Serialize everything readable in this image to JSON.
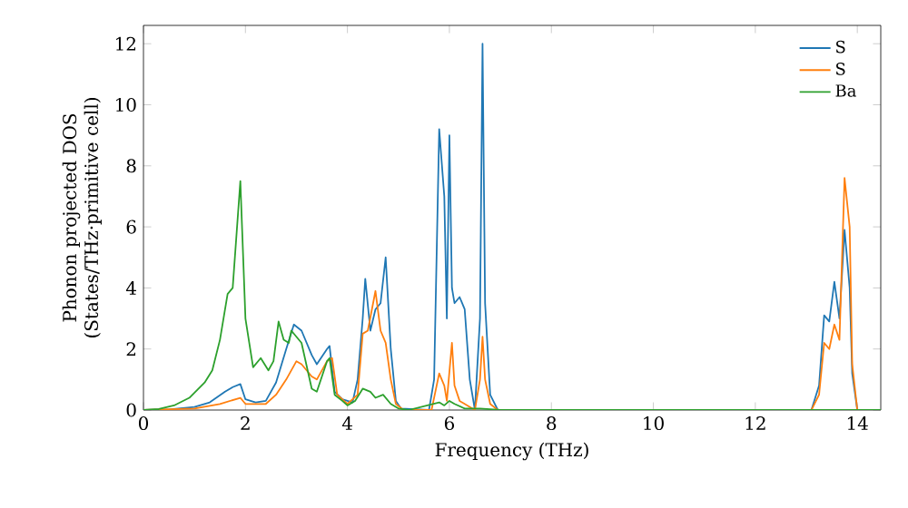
{
  "chart_data": {
    "type": "line",
    "xlabel": "Frequency (THz)",
    "ylabel": "Phonon projected DOS (States/THz·primitive cell)",
    "xlim": [
      0,
      14.46
    ],
    "ylim": [
      0,
      12.6
    ],
    "xticks": [
      0,
      2,
      4,
      6,
      8,
      10,
      12,
      14
    ],
    "yticks": [
      0,
      2,
      4,
      6,
      8,
      10,
      12
    ],
    "legend": "top right",
    "grid": false,
    "marker": "none",
    "line_style": "solid",
    "series": [
      {
        "name": "S",
        "color": "#1f77b4",
        "x": [
          0,
          0.5,
          1.0,
          1.3,
          1.6,
          1.75,
          1.9,
          2.0,
          2.2,
          2.4,
          2.6,
          2.8,
          2.95,
          3.1,
          3.3,
          3.4,
          3.6,
          3.65,
          3.75,
          3.9,
          4.0,
          4.1,
          4.2,
          4.3,
          4.35,
          4.45,
          4.55,
          4.65,
          4.75,
          4.85,
          4.95,
          5.05,
          5.6,
          5.7,
          5.8,
          5.9,
          5.95,
          6.0,
          6.05,
          6.1,
          6.2,
          6.3,
          6.4,
          6.5,
          6.6,
          6.65,
          6.7,
          6.8,
          6.95,
          13.1,
          13.25,
          13.35,
          13.45,
          13.55,
          13.65,
          13.75,
          13.85,
          13.9,
          14.0,
          14.46
        ],
        "values": [
          0,
          0.02,
          0.1,
          0.25,
          0.6,
          0.75,
          0.85,
          0.35,
          0.25,
          0.3,
          0.9,
          2.0,
          2.8,
          2.6,
          1.8,
          1.5,
          2.0,
          2.1,
          0.6,
          0.35,
          0.3,
          0.25,
          1.0,
          3.0,
          4.3,
          2.6,
          3.3,
          3.5,
          5.0,
          2.0,
          0.3,
          0.05,
          0,
          1.0,
          9.2,
          7.0,
          3.0,
          9.0,
          4.0,
          3.5,
          3.7,
          3.3,
          1.0,
          0,
          3.0,
          12.0,
          3.5,
          0.5,
          0,
          0,
          0.8,
          3.1,
          2.9,
          4.2,
          3.0,
          5.9,
          4.0,
          1.2,
          0,
          0
        ]
      },
      {
        "name": "S",
        "color": "#ff7f0e",
        "x": [
          0,
          1.0,
          1.5,
          1.9,
          2.0,
          2.4,
          2.6,
          2.8,
          3.0,
          3.1,
          3.3,
          3.4,
          3.6,
          3.7,
          3.8,
          4.0,
          4.2,
          4.3,
          4.4,
          4.55,
          4.65,
          4.75,
          4.85,
          4.95,
          5.1,
          5.65,
          5.8,
          5.9,
          5.95,
          6.05,
          6.1,
          6.2,
          6.5,
          6.6,
          6.65,
          6.7,
          6.8,
          6.95,
          13.1,
          13.25,
          13.35,
          13.45,
          13.55,
          13.65,
          13.75,
          13.85,
          13.9,
          14.0,
          14.46
        ],
        "values": [
          0,
          0.05,
          0.2,
          0.4,
          0.2,
          0.2,
          0.5,
          1.0,
          1.6,
          1.5,
          1.1,
          1.0,
          1.6,
          1.7,
          0.5,
          0.2,
          0.5,
          2.5,
          2.6,
          3.9,
          2.6,
          2.2,
          1.0,
          0.2,
          0,
          0,
          1.2,
          0.8,
          0.3,
          2.2,
          0.8,
          0.3,
          0,
          1.0,
          2.4,
          1.0,
          0.2,
          0,
          0,
          0.5,
          2.2,
          2.0,
          2.8,
          2.3,
          7.6,
          6.0,
          1.5,
          0,
          0
        ]
      },
      {
        "name": "Ba",
        "color": "#2ca02c",
        "x": [
          0,
          0.3,
          0.6,
          0.9,
          1.2,
          1.35,
          1.5,
          1.65,
          1.75,
          1.9,
          2.0,
          2.15,
          2.3,
          2.45,
          2.55,
          2.65,
          2.75,
          2.85,
          2.9,
          3.1,
          3.3,
          3.4,
          3.6,
          3.65,
          3.75,
          3.9,
          4.0,
          4.15,
          4.3,
          4.45,
          4.55,
          4.7,
          4.85,
          5.0,
          5.2,
          5.8,
          5.9,
          6.0,
          6.1,
          6.3,
          6.6,
          7.0,
          14.46
        ],
        "values": [
          0,
          0.03,
          0.15,
          0.4,
          0.9,
          1.3,
          2.3,
          3.8,
          4.0,
          7.5,
          3.0,
          1.4,
          1.7,
          1.3,
          1.6,
          2.9,
          2.3,
          2.2,
          2.6,
          2.2,
          0.7,
          0.6,
          1.6,
          1.7,
          0.5,
          0.3,
          0.15,
          0.3,
          0.7,
          0.6,
          0.4,
          0.5,
          0.2,
          0.05,
          0,
          0.25,
          0.15,
          0.3,
          0.2,
          0.05,
          0.05,
          0,
          0
        ]
      }
    ]
  }
}
